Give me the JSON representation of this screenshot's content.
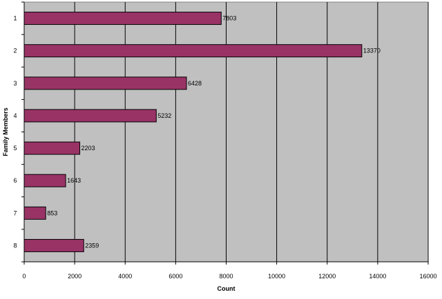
{
  "chart_data": {
    "type": "bar",
    "orientation": "horizontal",
    "categories": [
      "1",
      "2",
      "3",
      "4",
      "5",
      "6",
      "7",
      "8"
    ],
    "values": [
      7803,
      13370,
      6428,
      5232,
      2203,
      1643,
      853,
      2359
    ],
    "xlabel": "Count",
    "ylabel": "Family Members",
    "xlim": [
      0,
      16000
    ],
    "xticks": [
      "0",
      "2000",
      "4000",
      "6000",
      "8000",
      "10000",
      "12000",
      "14000",
      "16000"
    ],
    "grid": "vertical",
    "legend": "none",
    "colors": {
      "bar_fill": "#993366",
      "bar_stroke": "#000000",
      "plot_background": "#c0c0c0",
      "gridline": "#000000"
    }
  }
}
